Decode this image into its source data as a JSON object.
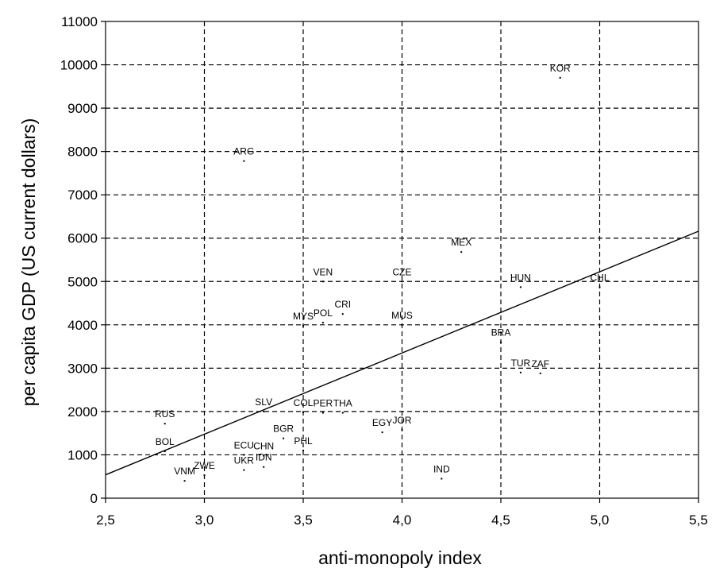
{
  "chart_data": {
    "type": "scatter",
    "title": "",
    "xlabel": "anti-monopoly index",
    "ylabel": "per capita GDP (US current dollars)",
    "xlim": [
      2.5,
      5.5
    ],
    "ylim": [
      0,
      11000
    ],
    "xticks": [
      2.5,
      3.0,
      3.5,
      4.0,
      4.5,
      5.0,
      5.5
    ],
    "xtick_labels": [
      "2,5",
      "3,0",
      "3,5",
      "4,0",
      "4,5",
      "5,0",
      "5,5"
    ],
    "yticks": [
      0,
      1000,
      2000,
      3000,
      4000,
      5000,
      6000,
      7000,
      8000,
      9000,
      10000,
      11000
    ],
    "ytick_labels": [
      "0",
      "1000",
      "2000",
      "3000",
      "4000",
      "5000",
      "6000",
      "7000",
      "8000",
      "9000",
      "10000",
      "11000"
    ],
    "grid": true,
    "grid_style": "dashed",
    "points": [
      {
        "label": "KOR",
        "x": 4.8,
        "y": 9700
      },
      {
        "label": "ARG",
        "x": 3.2,
        "y": 7780
      },
      {
        "label": "MEX",
        "x": 4.3,
        "y": 5680
      },
      {
        "label": "VEN",
        "x": 3.6,
        "y": 5000
      },
      {
        "label": "CZE",
        "x": 4.0,
        "y": 5000
      },
      {
        "label": "HUN",
        "x": 4.6,
        "y": 4870
      },
      {
        "label": "CHL",
        "x": 5.0,
        "y": 4870
      },
      {
        "label": "CRI",
        "x": 3.7,
        "y": 4250
      },
      {
        "label": "POL",
        "x": 3.6,
        "y": 4050
      },
      {
        "label": "MYS",
        "x": 3.5,
        "y": 3980
      },
      {
        "label": "MUS",
        "x": 4.0,
        "y": 4000
      },
      {
        "label": "BRA",
        "x": 4.5,
        "y": 3600
      },
      {
        "label": "TUR",
        "x": 4.6,
        "y": 2900
      },
      {
        "label": "ZAF",
        "x": 4.7,
        "y": 2880
      },
      {
        "label": "SLV",
        "x": 3.3,
        "y": 2000
      },
      {
        "label": "COL",
        "x": 3.5,
        "y": 1980
      },
      {
        "label": "PER",
        "x": 3.6,
        "y": 1970
      },
      {
        "label": "THA",
        "x": 3.7,
        "y": 1970
      },
      {
        "label": "RUS",
        "x": 2.8,
        "y": 1720
      },
      {
        "label": "JOR",
        "x": 4.0,
        "y": 1580
      },
      {
        "label": "EGY",
        "x": 3.9,
        "y": 1520
      },
      {
        "label": "BGR",
        "x": 3.4,
        "y": 1380
      },
      {
        "label": "PHL",
        "x": 3.5,
        "y": 1100
      },
      {
        "label": "BOL",
        "x": 2.8,
        "y": 1080
      },
      {
        "label": "ECU",
        "x": 3.2,
        "y": 1000
      },
      {
        "label": "CHN",
        "x": 3.3,
        "y": 980
      },
      {
        "label": "IDN",
        "x": 3.3,
        "y": 720
      },
      {
        "label": "UKR",
        "x": 3.2,
        "y": 650
      },
      {
        "label": "ZWE",
        "x": 3.0,
        "y": 530
      },
      {
        "label": "VNM",
        "x": 2.9,
        "y": 400
      },
      {
        "label": "IND",
        "x": 4.2,
        "y": 450
      }
    ],
    "trendline": {
      "x": [
        2.5,
        5.5
      ],
      "y": [
        540,
        6160
      ]
    }
  }
}
